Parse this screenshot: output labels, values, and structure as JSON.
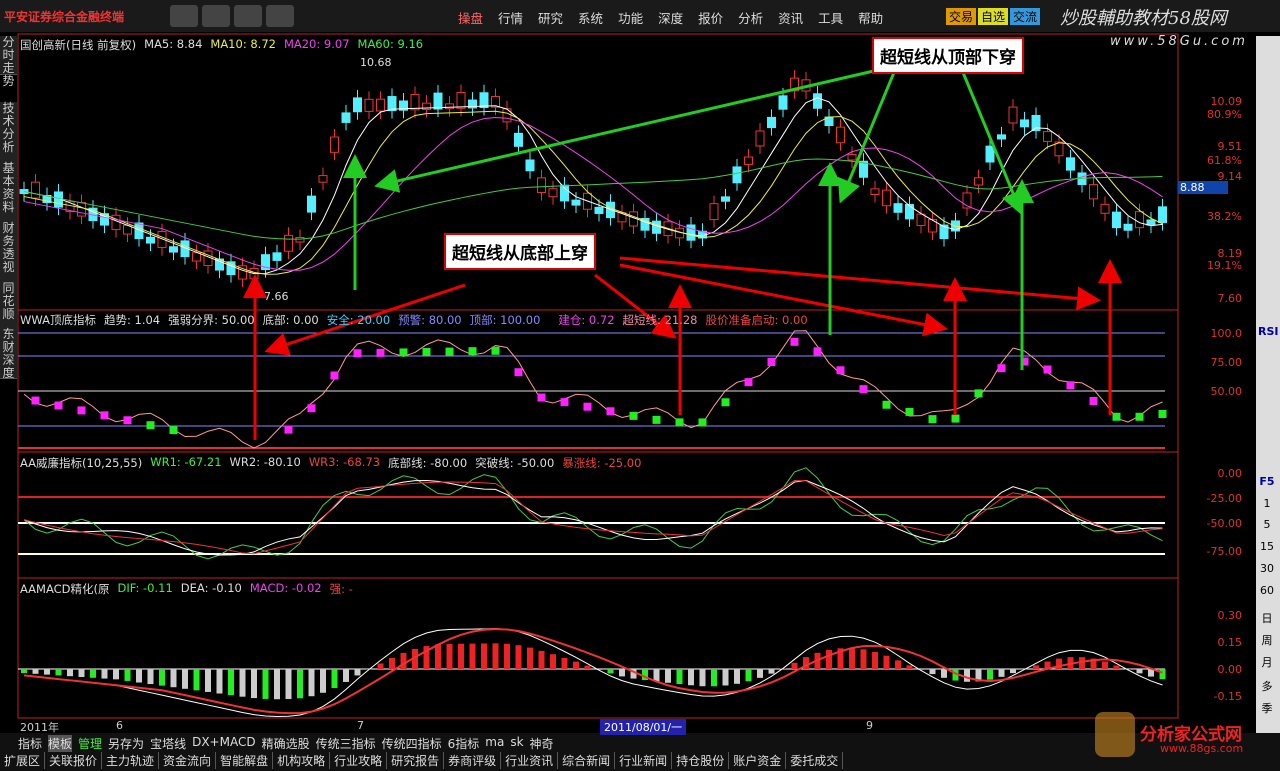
{
  "top_bar": {
    "logo": "平安证券综合金融终端",
    "menu": [
      "操盘",
      "行情",
      "研究",
      "系统",
      "功能",
      "深度",
      "报价",
      "分析",
      "资讯",
      "工具",
      "帮助"
    ],
    "quick": [
      "交易",
      "自选",
      "交流"
    ],
    "watermark": "炒股輔助教材58股网",
    "watermark_url": "www.58Gu.com"
  },
  "side_tabs": [
    "分时走势",
    "技术分析",
    "基本资料",
    "财务透视",
    "同花顺",
    "东财深度"
  ],
  "price_panel": {
    "header": [
      "国创高新(日线 前复权)",
      "MA5: 8.84",
      "MA10: 8.72",
      "MA20: 9.07",
      "MA60: 9.16"
    ],
    "axis_labels": [
      "10.09",
      "80.9%",
      "9.51",
      "61.8%",
      "9.14",
      "38.2%",
      "8.19",
      "19.1%",
      "7.60"
    ],
    "current_price": "8.88",
    "high_label": "10.68",
    "low_label": "7.66"
  },
  "annotations": {
    "top": "超短线从顶部下穿",
    "bottom": "超短线从底部上穿"
  },
  "panel1": {
    "header": [
      "WWA顶底指标",
      "趋势: 1.04",
      "强弱分界: 50.00",
      "底部: 0.00",
      "安全: 20.00",
      "预警: 80.00",
      "顶部: 100.00",
      "建仓: 0.72",
      "超短线: 21.28",
      "股价准备启动: 0.00"
    ],
    "axis_labels": [
      "100.0",
      "75.00",
      "50.00"
    ]
  },
  "panel2": {
    "header": [
      "AA威廉指标(10,25,55)",
      "WR1: -67.21",
      "WR2: -80.10",
      "WR3: -68.73",
      "底部线: -80.00",
      "突破线: -50.00",
      "暴涨线: -25.00"
    ],
    "axis_labels": [
      "0.00",
      "-25.00",
      "-50.00",
      "-75.00"
    ]
  },
  "panel3": {
    "header": [
      "AAMACD精化(原",
      "DIF: -0.11",
      "DEA: -0.10",
      "MACD: -0.02",
      "强: -"
    ],
    "axis_labels": [
      "0.30",
      "0.15",
      "0.00",
      "-0.15"
    ]
  },
  "date_axis": [
    "2011年",
    "6",
    "7",
    "2011/08/01/一",
    "9"
  ],
  "tabs": [
    "指标",
    "模板",
    "管理",
    "另存为",
    "宝塔线",
    "DX+MACD",
    "精确选股",
    "传统三指标",
    "传统四指标",
    "6指标",
    "ma",
    "sk",
    "神奇"
  ],
  "bottom_tabs": [
    "扩展区",
    "关联报价",
    "主力轨迹",
    "资金流向",
    "智能解盘",
    "机构攻略",
    "行业攻略",
    "研究报告",
    "券商评级",
    "行业资讯",
    "综合新闻",
    "行业新闻",
    "持仓股份",
    "账户资金",
    "委托成交"
  ],
  "toolbar": [
    "RSI",
    "F5",
    "1",
    "5",
    "15",
    "30",
    "60",
    "日",
    "周",
    "月",
    "多",
    "季"
  ],
  "footer_logo": {
    "name": "分析家公式网",
    "url": "www.88gs.com"
  }
}
